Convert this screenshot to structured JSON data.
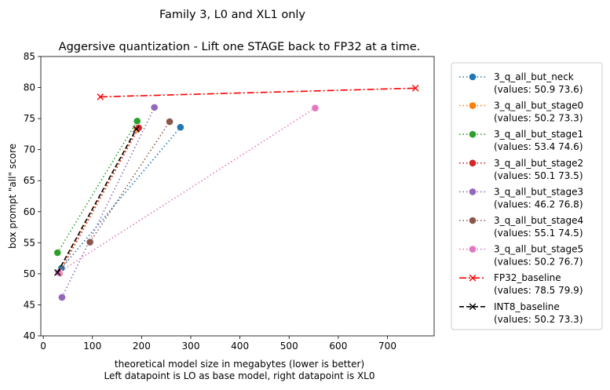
{
  "chart_data": {
    "type": "line",
    "suptitle": "Family 3, L0 and XL1 only",
    "title": "Aggersive quantization - Lift one STAGE back to FP32 at a time.",
    "xlabel_line1": "theoretical model size in megabytes (lower is better)",
    "xlabel_line2": "Left datapoint is LO as base model, right datapoint is XL0",
    "ylabel": "box prompt \"all\" score",
    "xlim": [
      -5,
      795
    ],
    "ylim": [
      40,
      85
    ],
    "xticks": [
      0,
      100,
      200,
      300,
      400,
      500,
      600,
      700
    ],
    "yticks": [
      40,
      45,
      50,
      55,
      60,
      65,
      70,
      75,
      80,
      85
    ],
    "grid": false,
    "legend_position": "outside-right",
    "series": [
      {
        "name": "3_q_all_but_neck",
        "legend_values": "(values: 50.9 73.6)",
        "color": "#1f77b4",
        "marker": "circle",
        "dash": "dotted",
        "x": [
          37,
          279
        ],
        "y": [
          50.9,
          73.6
        ]
      },
      {
        "name": "3_q_all_but_stage0",
        "legend_values": "(values: 50.2 73.3)",
        "color": "#ff7f0e",
        "marker": "circle",
        "dash": "dotted",
        "x": [
          31,
          191
        ],
        "y": [
          50.2,
          73.3
        ]
      },
      {
        "name": "3_q_all_but_stage1",
        "legend_values": "(values: 53.4 74.6)",
        "color": "#2ca02c",
        "marker": "circle",
        "dash": "dotted",
        "x": [
          29,
          191
        ],
        "y": [
          53.4,
          74.6
        ]
      },
      {
        "name": "3_q_all_but_stage2",
        "legend_values": "(values: 50.1 73.5)",
        "color": "#d62728",
        "marker": "circle",
        "dash": "dotted",
        "x": [
          33,
          194
        ],
        "y": [
          50.1,
          73.5
        ]
      },
      {
        "name": "3_q_all_but_stage3",
        "legend_values": "(values: 46.2 76.8)",
        "color": "#9467bd",
        "marker": "circle",
        "dash": "dotted",
        "x": [
          38,
          226
        ],
        "y": [
          46.2,
          76.8
        ]
      },
      {
        "name": "3_q_all_but_stage4",
        "legend_values": "(values: 55.1 74.5)",
        "color": "#8c564b",
        "marker": "circle",
        "dash": "dotted",
        "x": [
          95,
          257
        ],
        "y": [
          55.1,
          74.5
        ]
      },
      {
        "name": "3_q_all_but_stage5",
        "legend_values": "(values: 50.2 76.7)",
        "color": "#e377c2",
        "marker": "circle",
        "dash": "dotted",
        "x": [
          31,
          553
        ],
        "y": [
          50.2,
          76.7
        ]
      },
      {
        "name": "FP32_baseline",
        "legend_values": "(values: 78.5 79.9)",
        "color": "#ff0000",
        "marker": "x",
        "dash": "dashdot",
        "x": [
          116,
          757
        ],
        "y": [
          78.5,
          79.9
        ]
      },
      {
        "name": "INT8_baseline",
        "legend_values": "(values: 50.2 73.3)",
        "color": "#000000",
        "marker": "x",
        "dash": "dashed",
        "x": [
          29,
          189
        ],
        "y": [
          50.2,
          73.3
        ]
      }
    ]
  }
}
